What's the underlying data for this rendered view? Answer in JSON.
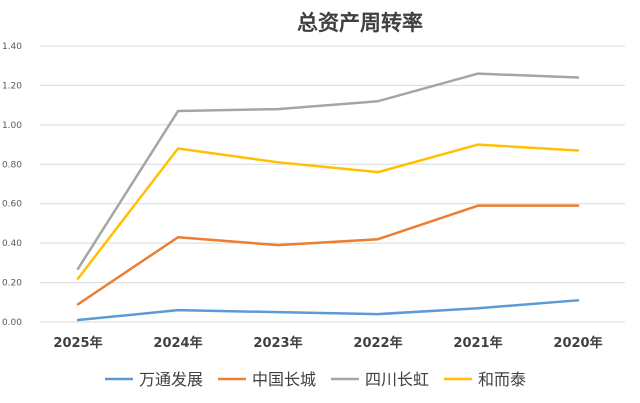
{
  "chart_data": {
    "type": "line",
    "title": "总资产周转率",
    "categories": [
      "2025年",
      "2024年",
      "2023年",
      "2022年",
      "2021年",
      "2020年"
    ],
    "ylim": [
      0,
      1.4
    ],
    "yticks": [
      "0.00",
      "0.20",
      "0.40",
      "0.60",
      "0.80",
      "1.00",
      "1.20",
      "1.40"
    ],
    "grid": true,
    "legend_position": "bottom",
    "series": [
      {
        "name": "万通发展",
        "color": "#5b9bd5",
        "values": [
          0.01,
          0.06,
          0.05,
          0.04,
          0.07,
          0.11
        ]
      },
      {
        "name": "中国长城",
        "color": "#ed7d31",
        "values": [
          0.09,
          0.43,
          0.39,
          0.42,
          0.59,
          0.59
        ]
      },
      {
        "name": "四川长虹",
        "color": "#a5a5a5",
        "values": [
          0.27,
          1.07,
          1.08,
          1.12,
          1.26,
          1.24
        ]
      },
      {
        "name": "和而泰",
        "color": "#ffc000",
        "values": [
          0.22,
          0.88,
          0.81,
          0.76,
          0.9,
          0.87
        ]
      }
    ]
  }
}
